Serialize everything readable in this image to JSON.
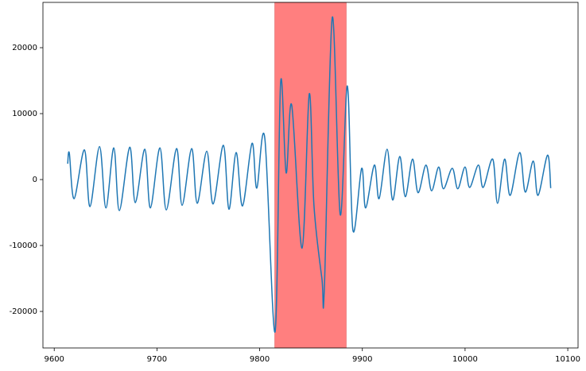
{
  "chart_data": {
    "type": "line",
    "x": [
      9613.1,
      9614.7,
      9619.3,
      9629.4,
      9634.8,
      9644.1,
      9650.3,
      9658.0,
      9663.4,
      9673.5,
      9678.9,
      9688.2,
      9693.6,
      9702.9,
      9709.1,
      9719.1,
      9724.5,
      9733.8,
      9739.2,
      9748.5,
      9754.7,
      9764.7,
      9770.1,
      9777.1,
      9783.3,
      9792.6,
      9797.2,
      9805.0,
      9815.0,
      9820.4,
      9825.8,
      9831.2,
      9841.3,
      9848.3,
      9852.9,
      9860.6,
      9863.0,
      9870.7,
      9878.4,
      9885.4,
      9890.8,
      9899.3,
      9903.2,
      9911.7,
      9916.3,
      9924.1,
      9929.5,
      9936.4,
      9941.8,
      9948.8,
      9954.2,
      9961.9,
      9967.4,
      9974.3,
      9979.0,
      9987.5,
      9992.9,
      9999.9,
      10004.5,
      10013.0,
      10017.6,
      10026.9,
      10031.6,
      10038.5,
      10043.9,
      10053.2,
      10058.6,
      10066.4,
      10071.0,
      10080.3,
      10083.4
    ],
    "values": [
      2400,
      4000,
      -2900,
      4500,
      -4100,
      5000,
      -4300,
      4800,
      -4700,
      4900,
      -3500,
      4600,
      -4300,
      4800,
      -4600,
      4700,
      -3900,
      4700,
      -3600,
      4300,
      -3700,
      5200,
      -4500,
      4100,
      -4000,
      5500,
      -1300,
      6300,
      -23100,
      14700,
      1000,
      11300,
      -10400,
      13000,
      -4000,
      -15000,
      -16500,
      24600,
      -5300,
      14200,
      -7700,
      1700,
      -4300,
      2200,
      -2900,
      4600,
      -3100,
      3500,
      -2600,
      3100,
      -2000,
      2200,
      -1700,
      1900,
      -1400,
      1700,
      -1400,
      1900,
      -1200,
      2200,
      -1200,
      3100,
      -3600,
      3100,
      -2400,
      4100,
      -1900,
      2800,
      -2400,
      3700,
      -1300
    ],
    "color": "#1f77b4",
    "highlight": {
      "xmin": 9814.7,
      "xmax": 9884.3,
      "color": "#ff7f7f"
    },
    "xlim": [
      9589,
      10110
    ],
    "xticks": [
      9600,
      9700,
      9800,
      9900,
      10000,
      10100
    ],
    "ylim": [
      -25540,
      26870
    ],
    "yticks": [
      -20000,
      -10000,
      0,
      10000,
      20000
    ]
  }
}
